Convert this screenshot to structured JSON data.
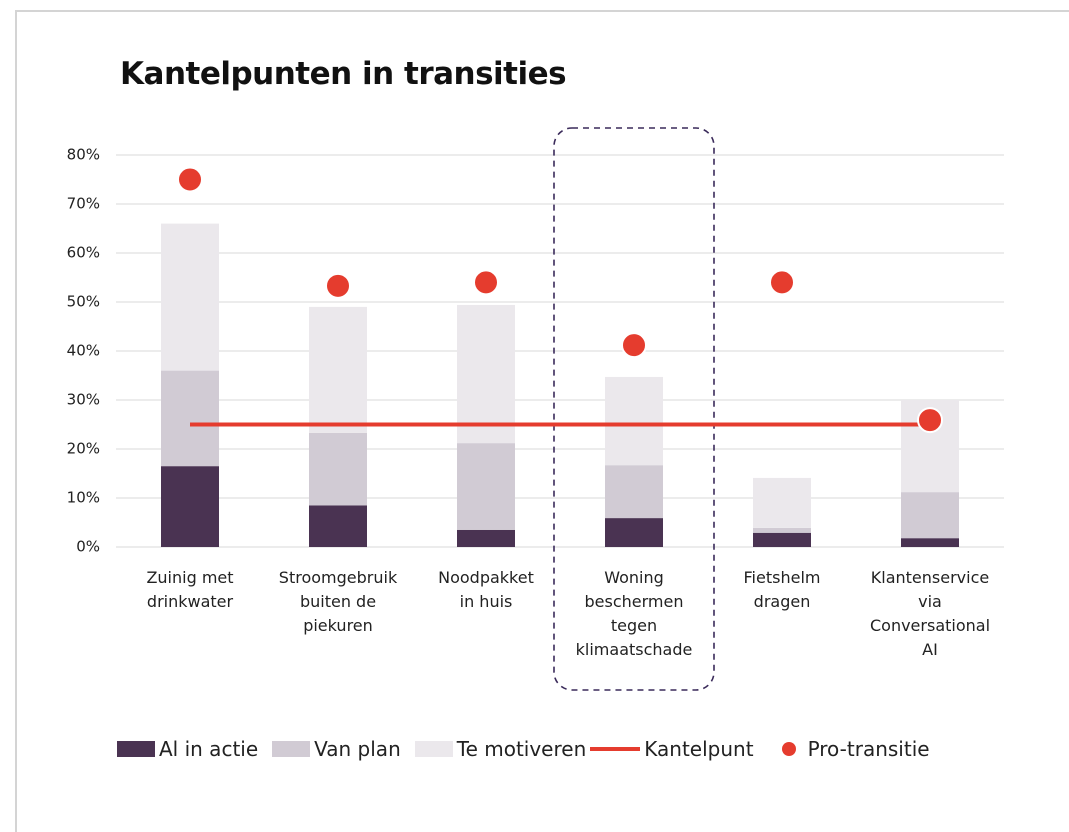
{
  "chart_data": {
    "type": "bar",
    "stacked": true,
    "title": "Kantelpunten in transities",
    "categories": [
      "Zuinig met\ndrinkwater",
      "Stroomgebruik\nbuiten de\npiekuren",
      "Noodpakket\nin huis",
      "Woning\nbeschermen\ntegen\nklimaatschade",
      "Fietshelm\ndragen",
      "Klantenservice\nvia\nConversational\nAI"
    ],
    "highlight_category": 3,
    "series": [
      {
        "name": "Al in actie",
        "type": "bar",
        "color": "#4a3352",
        "values": [
          16.5,
          8.5,
          3.5,
          5.9,
          2.9,
          1.8
        ]
      },
      {
        "name": "Van plan",
        "type": "bar",
        "color": "#d1cbd4",
        "values": [
          19.5,
          14.8,
          17.7,
          10.8,
          1,
          9.4
        ]
      },
      {
        "name": "Te motiveren",
        "type": "bar",
        "color": "#ebe8ec",
        "values": [
          30,
          25.7,
          28.2,
          18,
          10.2,
          18.8
        ]
      },
      {
        "name": "Kantelpunt",
        "type": "line",
        "color": "#e53c2e",
        "values": [
          25,
          25,
          25,
          25,
          25,
          25
        ]
      },
      {
        "name": "Pro-transitie",
        "type": "scatter",
        "color": "#e53c2e",
        "values": [
          75,
          53.3,
          54,
          41.2,
          54,
          25.9
        ]
      }
    ],
    "ylim": [
      0,
      80
    ],
    "yticks": [
      {
        "value": 0,
        "label": "0%"
      },
      {
        "value": 10,
        "label": "10%"
      },
      {
        "value": 20,
        "label": "20%"
      },
      {
        "value": 30,
        "label": "30%"
      },
      {
        "value": 40,
        "label": "40%"
      },
      {
        "value": 50,
        "label": "50%"
      },
      {
        "value": 60,
        "label": "60%"
      },
      {
        "value": 70,
        "label": "70%"
      },
      {
        "value": 80,
        "label": "80%"
      }
    ],
    "grid": true,
    "legend": "bottom"
  }
}
